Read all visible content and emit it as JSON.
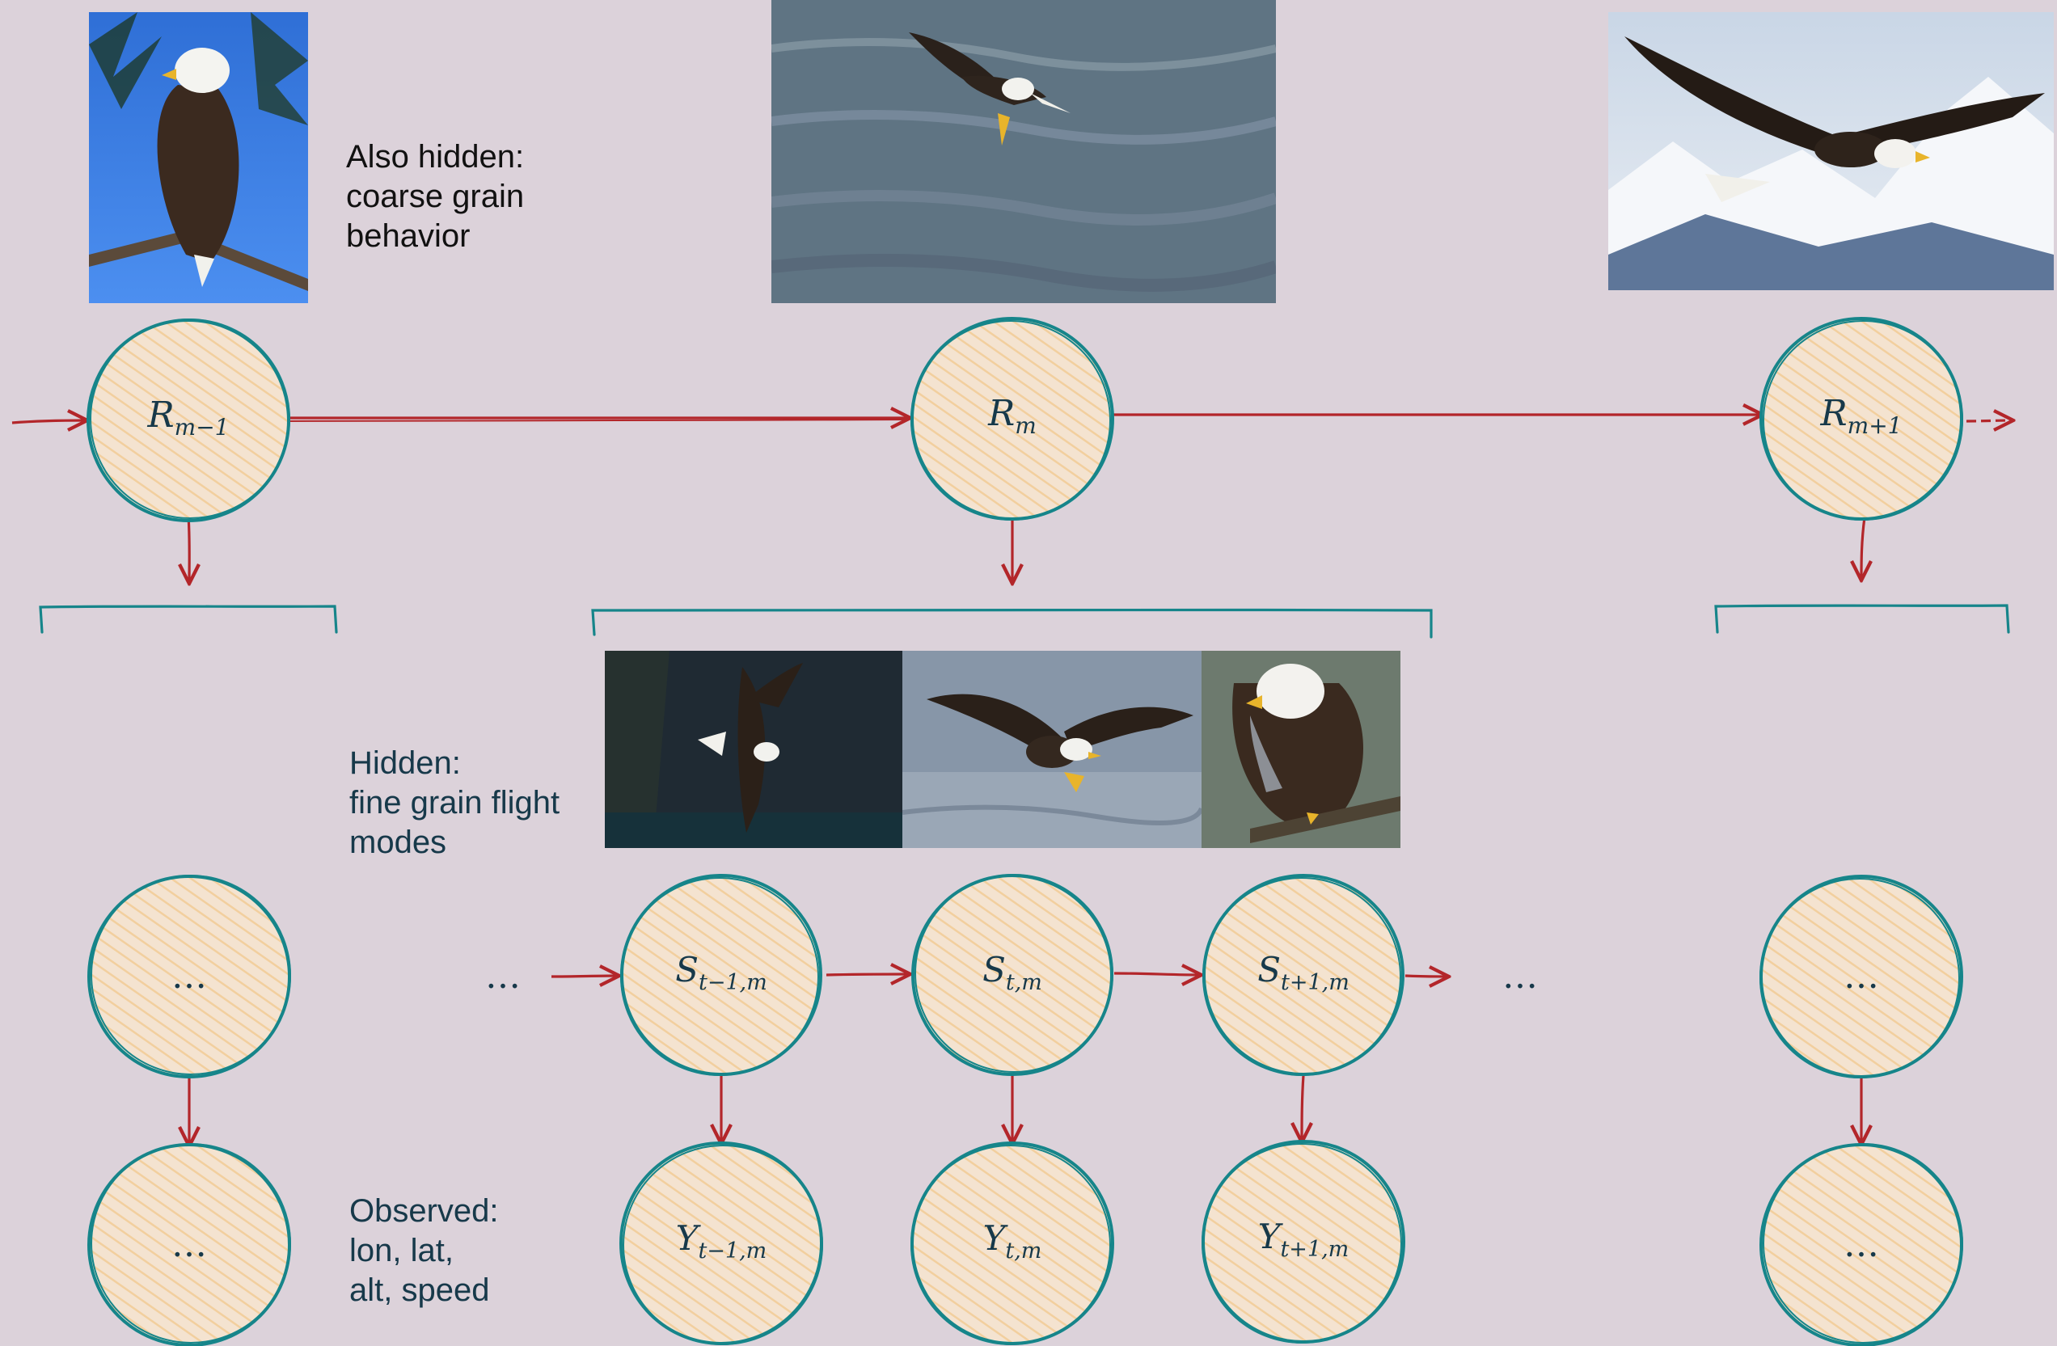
{
  "captions": {
    "coarse": "Also hidden:\ncoarse grain\nbehavior",
    "fine": "Hidden:\nfine grain flight\nmodes",
    "observed": "Observed:\nlon, lat,\nalt, speed"
  },
  "nodes": {
    "r_prev": {
      "base": "R",
      "sub": "m−1"
    },
    "r_cur": {
      "base": "R",
      "sub": "m"
    },
    "r_next": {
      "base": "R",
      "sub": "m+1"
    },
    "s_prev": {
      "base": "S",
      "sub": "t−1,m"
    },
    "s_cur": {
      "base": "S",
      "sub": "t,m"
    },
    "s_next": {
      "base": "S",
      "sub": "t+1,m"
    },
    "y_prev": {
      "base": "Y",
      "sub": "t−1,m"
    },
    "y_cur": {
      "base": "Y",
      "sub": "t,m"
    },
    "y_next": {
      "base": "Y",
      "sub": "t+1,m"
    },
    "ellipsis": "…"
  },
  "photos": {
    "perched": "perched-eagle-photo",
    "water": "eagle-over-water-photo",
    "mountain": "eagle-soaring-mountains-photo",
    "glide": "eagle-gliding-photo",
    "dive": "eagle-diving-photo",
    "fish": "eagle-with-fish-photo"
  },
  "colors": {
    "background": "#dcd2da",
    "node_stroke": "#16858a",
    "node_fill": "#f6dfc2",
    "arrow": "#b3262a",
    "text": "#17394a"
  }
}
